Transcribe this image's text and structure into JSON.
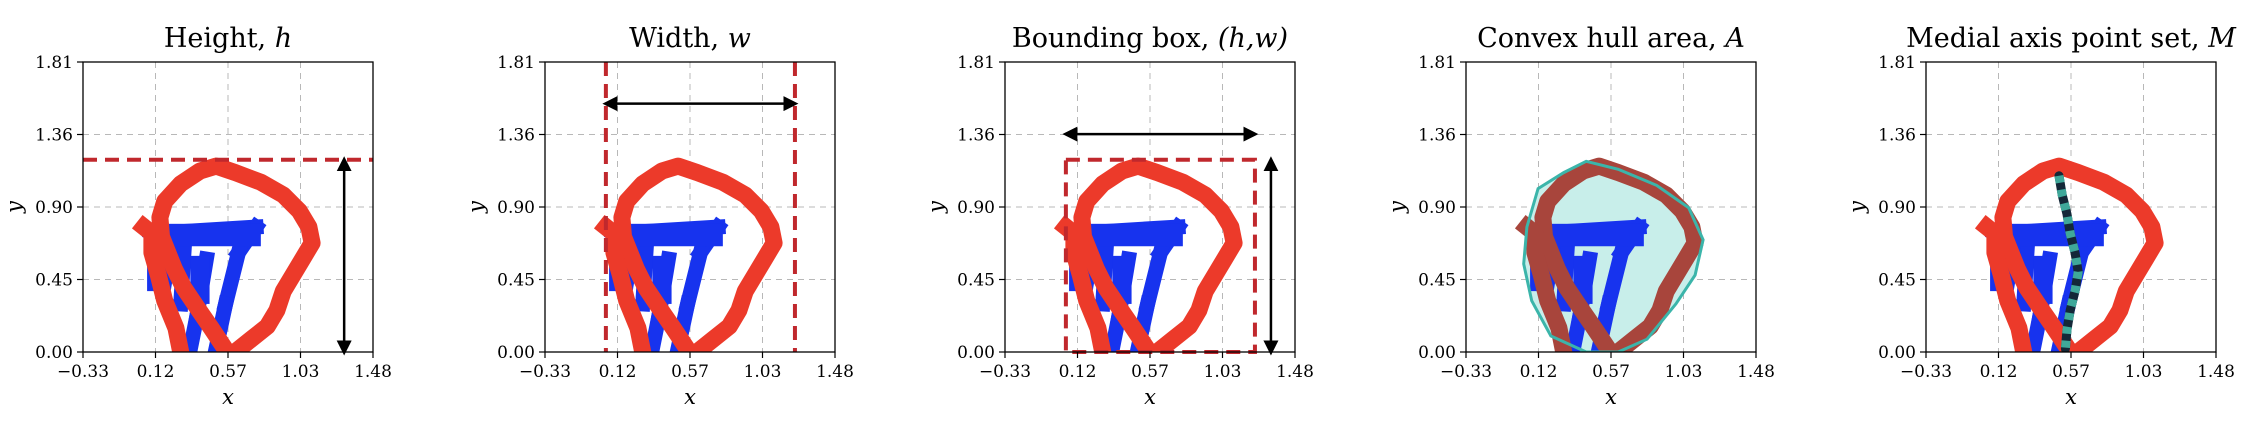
{
  "chart_data": [
    {
      "type": "scatter",
      "title": "Height, ",
      "title_symbol": "h",
      "xlabel": "x",
      "ylabel": "y",
      "xlim": [
        -0.33,
        1.48
      ],
      "ylim": [
        0.0,
        1.81
      ],
      "xticks": [
        "−0.33",
        "0.12",
        "0.57",
        "1.03",
        "1.48"
      ],
      "yticks": [
        "0.00",
        "0.45",
        "0.90",
        "1.36",
        "1.81"
      ],
      "grid": true,
      "annotation": "height",
      "annotation_value": 1.2
    },
    {
      "type": "scatter",
      "title": "Width, ",
      "title_symbol": "w",
      "xlabel": "x",
      "ylabel": "y",
      "xlim": [
        -0.33,
        1.48
      ],
      "ylim": [
        0.0,
        1.81
      ],
      "xticks": [
        "−0.33",
        "0.12",
        "0.57",
        "1.03",
        "1.48"
      ],
      "yticks": [
        "0.00",
        "0.45",
        "0.90",
        "1.36",
        "1.81"
      ],
      "grid": true,
      "annotation": "width",
      "annotation_value": [
        0.05,
        1.23
      ]
    },
    {
      "type": "scatter",
      "title": "Bounding box, ",
      "title_symbol": "(h,w)",
      "xlabel": "x",
      "ylabel": "y",
      "xlim": [
        -0.33,
        1.48
      ],
      "ylim": [
        0.0,
        1.81
      ],
      "xticks": [
        "−0.33",
        "0.12",
        "0.57",
        "1.03",
        "1.48"
      ],
      "yticks": [
        "0.00",
        "0.45",
        "0.90",
        "1.36",
        "1.81"
      ],
      "grid": true,
      "annotation": "bbox",
      "annotation_value": [
        0.05,
        1.23,
        0.0,
        1.2
      ]
    },
    {
      "type": "scatter",
      "title": "Convex hull area, ",
      "title_symbol": "A",
      "xlabel": "x",
      "ylabel": "y",
      "xlim": [
        -0.33,
        1.48
      ],
      "ylim": [
        0.0,
        1.81
      ],
      "xticks": [
        "−0.33",
        "0.12",
        "0.57",
        "1.03",
        "1.48"
      ],
      "yticks": [
        "0.00",
        "0.45",
        "0.90",
        "1.36",
        "1.81"
      ],
      "grid": true,
      "annotation": "hull"
    },
    {
      "type": "scatter",
      "title": "Medial axis point set, ",
      "title_symbol": "M",
      "xlabel": "x",
      "ylabel": "y",
      "xlim": [
        -0.33,
        1.48
      ],
      "ylim": [
        0.0,
        1.81
      ],
      "xticks": [
        "−0.33",
        "0.12",
        "0.57",
        "1.03",
        "1.48"
      ],
      "yticks": [
        "0.00",
        "0.45",
        "0.90",
        "1.36",
        "1.81"
      ],
      "grid": true,
      "annotation": "medial"
    }
  ],
  "shape_data": {
    "blue_digit_stroke": [
      [
        0.1,
        0.74
      ],
      [
        0.75,
        0.78
      ],
      [
        0.64,
        0.62
      ],
      [
        0.56,
        0.3
      ],
      [
        0.5,
        0.02
      ],
      [
        0.44,
        0.58
      ],
      [
        0.38,
        0.22
      ],
      [
        0.34,
        0.02
      ],
      [
        0.3,
        0.62
      ],
      [
        0.28,
        0.3
      ],
      [
        0.22,
        0.68
      ],
      [
        0.18,
        0.44
      ]
    ],
    "red_outline": [
      [
        0.57,
        0.0
      ],
      [
        0.47,
        0.15
      ],
      [
        0.38,
        0.28
      ],
      [
        0.3,
        0.4
      ],
      [
        0.24,
        0.52
      ],
      [
        0.2,
        0.62
      ],
      [
        0.16,
        0.72
      ],
      [
        0.15,
        0.84
      ],
      [
        0.18,
        0.94
      ],
      [
        0.28,
        1.05
      ],
      [
        0.4,
        1.13
      ],
      [
        0.5,
        1.16
      ],
      [
        0.62,
        1.12
      ],
      [
        0.78,
        1.06
      ],
      [
        0.92,
        0.98
      ],
      [
        1.02,
        0.88
      ],
      [
        1.08,
        0.78
      ],
      [
        1.1,
        0.68
      ],
      [
        1.04,
        0.58
      ],
      [
        0.98,
        0.48
      ],
      [
        0.92,
        0.38
      ],
      [
        0.88,
        0.26
      ],
      [
        0.82,
        0.16
      ],
      [
        0.72,
        0.08
      ],
      [
        0.62,
        0.0
      ]
    ],
    "red_inner_stroke": [
      [
        0.28,
        0.0
      ],
      [
        0.25,
        0.15
      ],
      [
        0.18,
        0.32
      ],
      [
        0.14,
        0.48
      ],
      [
        0.1,
        0.62
      ],
      [
        0.1,
        0.74
      ],
      [
        0.05,
        0.78
      ]
    ],
    "hull": [
      [
        0.05,
        0.78
      ],
      [
        0.12,
        1.02
      ],
      [
        0.28,
        1.12
      ],
      [
        0.42,
        1.19
      ],
      [
        0.62,
        1.14
      ],
      [
        0.86,
        1.04
      ],
      [
        1.06,
        0.9
      ],
      [
        1.15,
        0.7
      ],
      [
        1.1,
        0.48
      ],
      [
        0.98,
        0.3
      ],
      [
        0.8,
        0.08
      ],
      [
        0.62,
        0.0
      ],
      [
        0.42,
        0.0
      ],
      [
        0.2,
        0.1
      ],
      [
        0.08,
        0.32
      ],
      [
        0.03,
        0.55
      ]
    ],
    "medial_axis": [
      [
        0.5,
        1.1
      ],
      [
        0.52,
        0.98
      ],
      [
        0.55,
        0.86
      ],
      [
        0.57,
        0.74
      ],
      [
        0.6,
        0.62
      ],
      [
        0.62,
        0.5
      ],
      [
        0.6,
        0.38
      ],
      [
        0.57,
        0.26
      ],
      [
        0.55,
        0.14
      ],
      [
        0.54,
        0.02
      ]
    ]
  }
}
